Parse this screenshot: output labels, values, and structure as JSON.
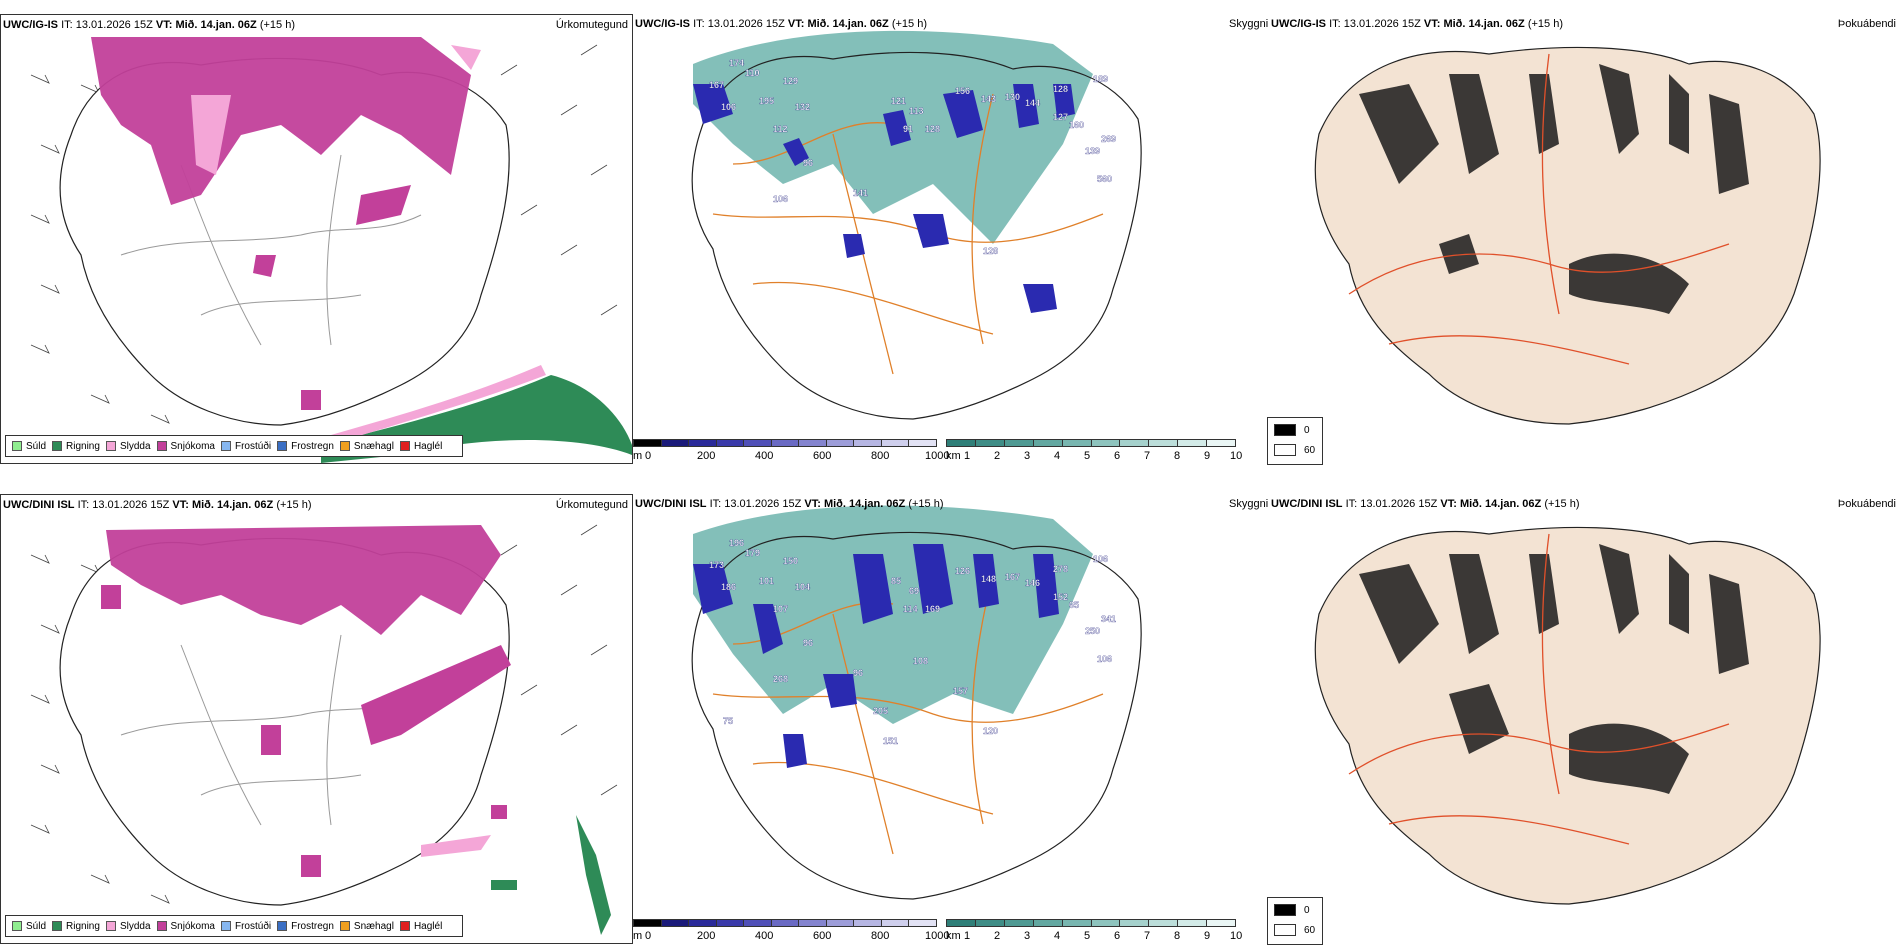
{
  "rows": [
    {
      "model": "UWC/IG-IS",
      "it_label": "IT:",
      "it_value": "13.01.2026 15Z",
      "vt_label": "VT:",
      "vt_value": "Mið. 14.jan. 06Z",
      "lead": "(+15 h)",
      "precip_title": "Úrkomutegund",
      "vis_title": "Skyggni",
      "fog_title": "Þokuábendi",
      "ceiling_labels": [
        "174",
        "110",
        "129",
        "167",
        "106",
        "195",
        "132",
        "112",
        "96",
        "106",
        "141",
        "121",
        "113",
        "91",
        "128",
        "156",
        "143",
        "130",
        "144",
        "128",
        "127",
        "189",
        "160",
        "269",
        "139",
        "560",
        "128"
      ]
    },
    {
      "model": "UWC/DINI ISL",
      "it_label": "IT:",
      "it_value": "13.01.2026 15Z",
      "vt_label": "VT:",
      "vt_value": "Mið. 14.jan. 06Z",
      "lead": "(+15 h)",
      "precip_title": "Úrkomutegund",
      "vis_title": "Skyggni",
      "fog_title": "Þokuábendi",
      "ceiling_labels": [
        "196",
        "179",
        "150",
        "173",
        "186",
        "101",
        "104",
        "107",
        "96",
        "268",
        "96",
        "85",
        "69",
        "114",
        "169",
        "126",
        "148",
        "167",
        "146",
        "278",
        "152",
        "106",
        "65",
        "341",
        "250",
        "106",
        "120",
        "205",
        "108",
        "157",
        "75",
        "151"
      ]
    }
  ],
  "precip_legend": [
    {
      "label": "Súld",
      "color": "#90ee90"
    },
    {
      "label": "Rigning",
      "color": "#2e8b57"
    },
    {
      "label": "Slydda",
      "color": "#f4a6d7"
    },
    {
      "label": "Snjókoma",
      "color": "#c2409a"
    },
    {
      "label": "Frostúði",
      "color": "#87b7f0"
    },
    {
      "label": "Frostregn",
      "color": "#3a6fc4"
    },
    {
      "label": "Snæhagl",
      "color": "#f0a020"
    },
    {
      "label": "Haglél",
      "color": "#e02020"
    }
  ],
  "ceiling_bar": {
    "unit": "m",
    "ticks": [
      "0",
      "200",
      "400",
      "600",
      "800",
      "1000"
    ],
    "colors": [
      "#000000",
      "#1a1a7a",
      "#2a2a9a",
      "#3a3aaa",
      "#5050b8",
      "#6a6ac4",
      "#8484cf",
      "#9d9dd9",
      "#b6b6e3",
      "#cfcfed",
      "#e2e2f4"
    ]
  },
  "vis_bar": {
    "unit": "km",
    "ticks": [
      "1",
      "2",
      "3",
      "4",
      "5",
      "6",
      "7",
      "8",
      "9",
      "10"
    ],
    "colors": [
      "#2f7f78",
      "#3f8d86",
      "#4f9a93",
      "#63a8a1",
      "#78b6b0",
      "#8ec4be",
      "#a5d1cc",
      "#bcdeda",
      "#d3ebe8",
      "#eaf6f5"
    ]
  },
  "fog_legend": [
    {
      "label": "0",
      "color": "#000000"
    },
    {
      "label": "60",
      "color": "#ffffff"
    }
  ],
  "colors": {
    "snow": "#c2409a",
    "sleet": "#f4a6d7",
    "rain": "#2e8b57",
    "vis": "#5aa9a2",
    "ceiling": "#2a2ab0",
    "roads": "#e0802a",
    "terrain": "#f3e3d3"
  }
}
